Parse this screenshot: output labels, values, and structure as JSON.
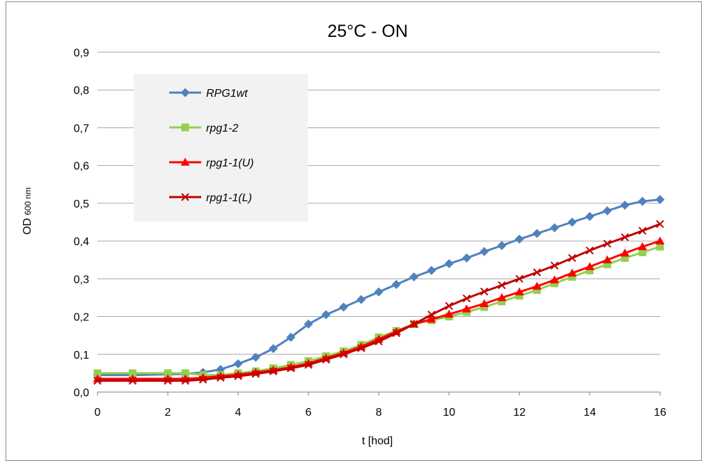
{
  "chart_data": {
    "type": "line",
    "title": "25°C - ON",
    "xlabel": "t [hod]",
    "ylabel": "OD",
    "ylabel_sub": "600 nm",
    "xlim": [
      0,
      16
    ],
    "ylim": [
      0,
      0.9
    ],
    "x_ticks": [
      "0",
      "2",
      "4",
      "6",
      "8",
      "10",
      "12",
      "14",
      "16"
    ],
    "y_ticks": [
      "0,0",
      "0,1",
      "0,2",
      "0,3",
      "0,4",
      "0,5",
      "0,6",
      "0,7",
      "0,8",
      "0,9"
    ],
    "grid": true,
    "legend_position": "top-left",
    "x": [
      0,
      1,
      2,
      2.5,
      3,
      3.5,
      4,
      4.5,
      5,
      5.5,
      6,
      6.5,
      7,
      7.5,
      8,
      8.5,
      9,
      9.5,
      10,
      10.5,
      11,
      11.5,
      12,
      12.5,
      13,
      13.5,
      14,
      14.5,
      15,
      15.5,
      16
    ],
    "series": [
      {
        "name": "RPG1wt",
        "color": "#4F81BD",
        "marker": "diamond",
        "values": [
          0.045,
          0.045,
          0.047,
          0.048,
          0.052,
          0.06,
          0.075,
          0.092,
          0.115,
          0.145,
          0.18,
          0.205,
          0.225,
          0.245,
          0.265,
          0.285,
          0.305,
          0.322,
          0.34,
          0.355,
          0.372,
          0.388,
          0.405,
          0.42,
          0.435,
          0.45,
          0.465,
          0.48,
          0.495,
          0.505,
          0.51
        ]
      },
      {
        "name": "rpg1-2",
        "color": "#92D050",
        "marker": "square",
        "values": [
          0.05,
          0.05,
          0.05,
          0.05,
          0.045,
          0.045,
          0.05,
          0.055,
          0.063,
          0.072,
          0.082,
          0.095,
          0.108,
          0.125,
          0.145,
          0.162,
          0.18,
          0.19,
          0.2,
          0.212,
          0.225,
          0.24,
          0.255,
          0.27,
          0.288,
          0.305,
          0.322,
          0.338,
          0.355,
          0.37,
          0.385
        ]
      },
      {
        "name": "rpg1-1(U)",
        "color": "#FF0000",
        "marker": "triangle",
        "values": [
          0.035,
          0.035,
          0.035,
          0.035,
          0.038,
          0.042,
          0.046,
          0.052,
          0.058,
          0.066,
          0.076,
          0.09,
          0.104,
          0.12,
          0.14,
          0.16,
          0.18,
          0.193,
          0.206,
          0.22,
          0.234,
          0.25,
          0.265,
          0.28,
          0.297,
          0.315,
          0.332,
          0.35,
          0.368,
          0.385,
          0.4
        ]
      },
      {
        "name": "rpg1-1(L)",
        "color": "#C00000",
        "marker": "cross",
        "values": [
          0.03,
          0.03,
          0.03,
          0.03,
          0.033,
          0.038,
          0.042,
          0.048,
          0.055,
          0.063,
          0.072,
          0.086,
          0.1,
          0.116,
          0.134,
          0.156,
          0.18,
          0.205,
          0.228,
          0.248,
          0.266,
          0.283,
          0.3,
          0.317,
          0.335,
          0.355,
          0.375,
          0.393,
          0.41,
          0.427,
          0.445
        ]
      }
    ]
  }
}
